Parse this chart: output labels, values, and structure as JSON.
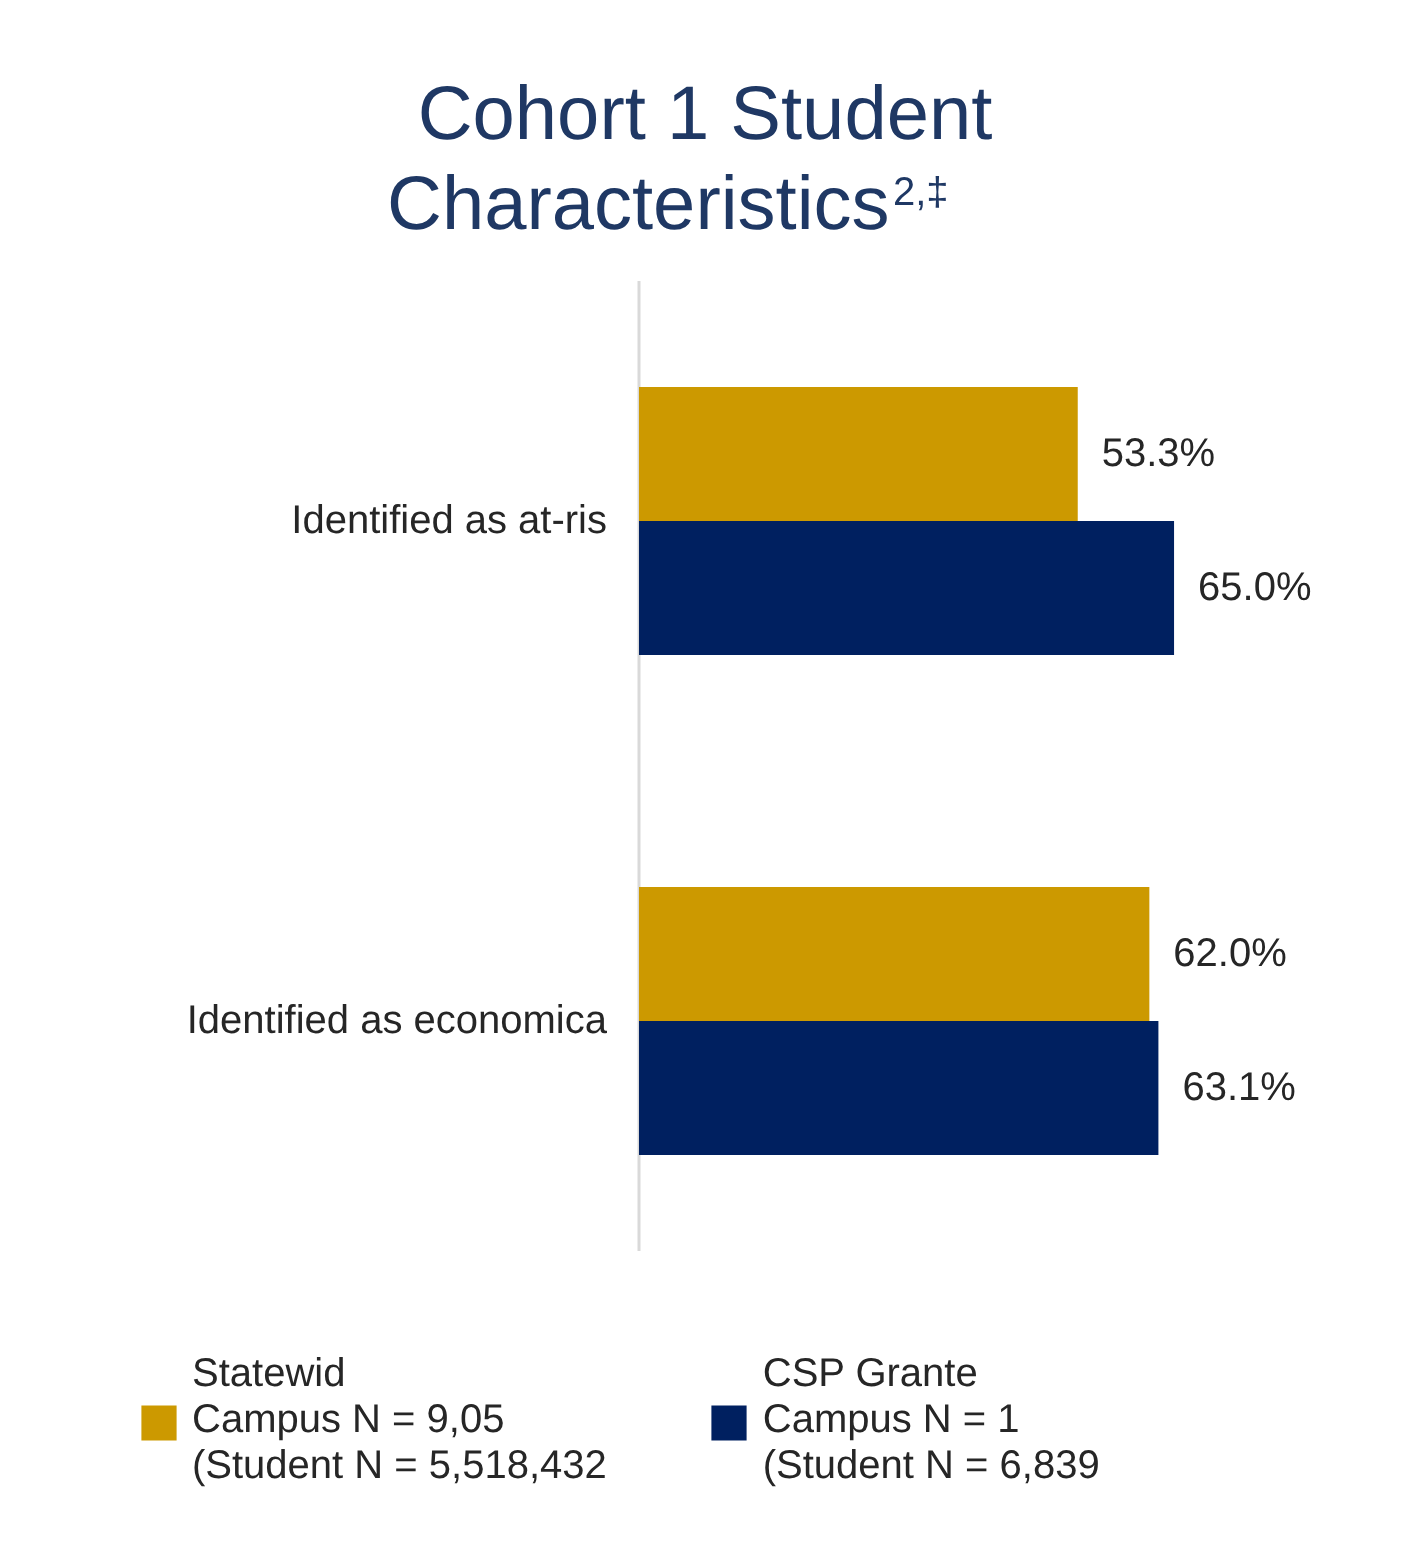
{
  "chart_data": {
    "type": "bar",
    "orientation": "horizontal",
    "title": "Cohort 1 Student Characteristics$^{2,‡}$",
    "categories": [
      "Identified as at-ris",
      "Identified as economica"
    ],
    "series": [
      {
        "name": "Statewid\nCampus N = 9,05\n(Student N = 5,518,432",
        "color": "#cc9900",
        "values": [
          53.3,
          62.0
        ],
        "value_labels": [
          "53.3%",
          "62.0%"
        ]
      },
      {
        "name": "CSP Grante\nCampus N = 1\n(Student N = 6,839",
        "color": "#002060",
        "values": [
          65.0,
          63.1
        ],
        "value_labels": [
          "65.0%",
          "63.1%"
        ]
      }
    ],
    "tick_labels": "y",
    "grid": false,
    "legend": "bottom"
  }
}
